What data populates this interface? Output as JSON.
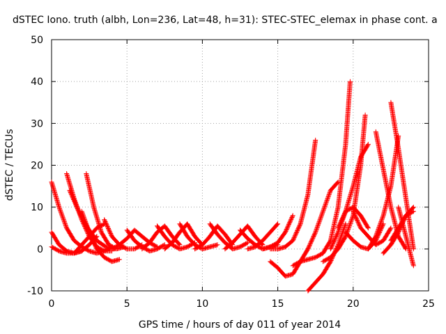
{
  "chart_data": {
    "type": "scatter",
    "title": "dSTEC Iono. truth (albh, Lon=236, Lat=48, h=31): STEC-STEC_elemax in phase cont. a",
    "xlabel": "GPS time / hours of day 011 of year 2014",
    "ylabel": "dSTEC  / TECUs",
    "xlim": [
      0,
      25
    ],
    "ylim": [
      -10,
      50
    ],
    "xticks": [
      0,
      5,
      10,
      15,
      20,
      25
    ],
    "yticks": [
      -10,
      0,
      10,
      20,
      30,
      40,
      50
    ],
    "grid": true,
    "marker": "+",
    "color": "#ff0000",
    "series": [
      {
        "x": [
          0.0,
          0.5,
          1.0,
          1.5,
          2.0,
          2.5,
          3.0,
          3.5,
          4.0
        ],
        "y": [
          16,
          10,
          5,
          2,
          0.5,
          -0.5,
          -1,
          -0.5,
          0.5
        ]
      },
      {
        "x": [
          0.0,
          0.5,
          1.0,
          1.5,
          2.0,
          2.5,
          3.0
        ],
        "y": [
          4,
          1,
          -0.5,
          -1,
          -0.5,
          1,
          3
        ]
      },
      {
        "x": [
          0.0,
          0.5,
          1.0,
          1.5,
          2.0
        ],
        "y": [
          0.5,
          -0.5,
          -1,
          -1,
          -0.5
        ]
      },
      {
        "x": [
          1.0,
          1.5,
          2.0,
          2.5,
          3.0,
          3.5,
          4.0
        ],
        "y": [
          18,
          12,
          7,
          3,
          0.5,
          -0.5,
          -0.5
        ]
      },
      {
        "x": [
          1.2,
          1.8,
          2.4,
          3.0,
          3.6,
          4.2
        ],
        "y": [
          14,
          9,
          5,
          2,
          0.5,
          0
        ]
      },
      {
        "x": [
          2.3,
          2.8,
          3.3,
          3.8,
          4.3,
          4.8
        ],
        "y": [
          18,
          10,
          4,
          1,
          0,
          0.5
        ]
      },
      {
        "x": [
          2.0,
          2.5,
          3.0,
          3.5,
          4.0,
          4.5
        ],
        "y": [
          9,
          4,
          0,
          -2,
          -3,
          -2.5
        ]
      },
      {
        "x": [
          1.5,
          2.0,
          2.5,
          3.0,
          3.5
        ],
        "y": [
          -1,
          1,
          3,
          5,
          6
        ]
      },
      {
        "x": [
          3.5,
          4.0,
          4.5,
          5.0,
          5.5,
          6.0
        ],
        "y": [
          7,
          3,
          1,
          0,
          0,
          1
        ]
      },
      {
        "x": [
          4.0,
          4.5,
          5.0,
          5.5,
          6.0,
          6.5,
          7.0
        ],
        "y": [
          0,
          1,
          2.5,
          4.5,
          3,
          1.5,
          0.5
        ]
      },
      {
        "x": [
          5.0,
          5.5,
          6.0,
          6.5,
          7.0,
          7.5
        ],
        "y": [
          4.5,
          2,
          0.5,
          -0.5,
          0,
          1
        ]
      },
      {
        "x": [
          6.0,
          6.5,
          7.0,
          7.5,
          8.0,
          8.5
        ],
        "y": [
          0,
          1.5,
          4,
          5.5,
          3,
          1
        ]
      },
      {
        "x": [
          7.0,
          7.5,
          8.0,
          8.5,
          9.0,
          9.5
        ],
        "y": [
          5.5,
          3,
          1,
          0,
          0.5,
          1.5
        ]
      },
      {
        "x": [
          7.5,
          8.0,
          8.5,
          9.0,
          9.5,
          10.0
        ],
        "y": [
          0,
          1.5,
          4,
          6,
          3,
          1
        ]
      },
      {
        "x": [
          8.5,
          9.0,
          9.5,
          10.0,
          10.5,
          11.0
        ],
        "y": [
          6,
          3,
          1,
          0,
          0.5,
          1
        ]
      },
      {
        "x": [
          9.5,
          10.0,
          10.5,
          11.0,
          11.5,
          12.0
        ],
        "y": [
          0,
          1,
          3,
          5.5,
          3.5,
          1
        ]
      },
      {
        "x": [
          10.5,
          11.0,
          11.5,
          12.0,
          12.5,
          13.0
        ],
        "y": [
          6,
          3.5,
          1.5,
          0,
          0.5,
          1.5
        ]
      },
      {
        "x": [
          11.5,
          12.0,
          12.5,
          13.0,
          13.5,
          14.0
        ],
        "y": [
          0,
          1.5,
          3.5,
          5.5,
          3,
          1
        ]
      },
      {
        "x": [
          12.5,
          13.0,
          13.5,
          14.0,
          14.5,
          15.0
        ],
        "y": [
          4.5,
          2.5,
          1,
          0,
          0.5,
          1
        ]
      },
      {
        "x": [
          13.0,
          13.5,
          14.0,
          14.5,
          15.0
        ],
        "y": [
          0,
          0.5,
          2,
          4,
          6
        ]
      },
      {
        "x": [
          14.0,
          14.5,
          15.0,
          15.5,
          16.0
        ],
        "y": [
          0,
          0.5,
          1.5,
          4,
          8
        ]
      },
      {
        "x": [
          14.5,
          15.0,
          15.5,
          16.0,
          16.5,
          17.0,
          17.5
        ],
        "y": [
          0,
          0,
          0.5,
          2,
          6,
          13,
          26
        ]
      },
      {
        "x": [
          14.5,
          15.0,
          15.5,
          16.0,
          16.5
        ],
        "y": [
          -3,
          -4.5,
          -6.5,
          -6,
          -3
        ]
      },
      {
        "x": [
          16.0,
          16.5,
          17.0,
          17.5,
          18.0,
          18.5,
          19.0,
          19.5,
          19.8
        ],
        "y": [
          -4,
          -3,
          -2.5,
          -2,
          -1,
          2,
          10,
          25,
          40
        ]
      },
      {
        "x": [
          16.5,
          17.0,
          17.5,
          18.0,
          18.5,
          19.0
        ],
        "y": [
          -3,
          0,
          4,
          9,
          14,
          16
        ]
      },
      {
        "x": [
          17.0,
          17.5,
          18.0,
          18.5,
          19.0,
          19.5
        ],
        "y": [
          -10,
          -8,
          -6,
          -3,
          1,
          6
        ]
      },
      {
        "x": [
          18.0,
          18.5,
          19.0,
          19.5,
          20.0,
          20.5,
          20.8
        ],
        "y": [
          -3,
          -2,
          0,
          3,
          8,
          20,
          32
        ]
      },
      {
        "x": [
          18.5,
          19.0,
          19.5,
          20.0,
          20.5,
          21.0
        ],
        "y": [
          0,
          4,
          9,
          15,
          22,
          25
        ]
      },
      {
        "x": [
          19.0,
          19.5,
          20.0,
          20.5,
          21.0
        ],
        "y": [
          5,
          9,
          10,
          8,
          5
        ]
      },
      {
        "x": [
          19.5,
          20.0,
          20.5,
          21.0,
          21.5,
          22.0
        ],
        "y": [
          4,
          2,
          0.5,
          0,
          2,
          6
        ]
      },
      {
        "x": [
          20.0,
          20.5,
          21.0,
          21.5,
          22.0,
          22.5
        ],
        "y": [
          9,
          5,
          3,
          1,
          2,
          5
        ]
      },
      {
        "x": [
          21.0,
          21.5,
          22.0,
          22.5,
          23.0
        ],
        "y": [
          0,
          3,
          8,
          15,
          27
        ]
      },
      {
        "x": [
          21.5,
          22.0,
          22.5,
          23.0,
          23.5
        ],
        "y": [
          28,
          19,
          10,
          3,
          0
        ]
      },
      {
        "x": [
          22.0,
          22.5,
          23.0,
          23.5,
          24.0
        ],
        "y": [
          -1,
          1,
          4,
          8,
          10
        ]
      },
      {
        "x": [
          22.5,
          23.0,
          23.5,
          24.0
        ],
        "y": [
          35,
          24,
          12,
          0
        ]
      },
      {
        "x": [
          22.5,
          23.0,
          23.5,
          24.0
        ],
        "y": [
          2,
          5,
          8,
          9
        ]
      },
      {
        "x": [
          23.0,
          23.5,
          24.0
        ],
        "y": [
          10,
          3,
          -4
        ]
      }
    ]
  }
}
